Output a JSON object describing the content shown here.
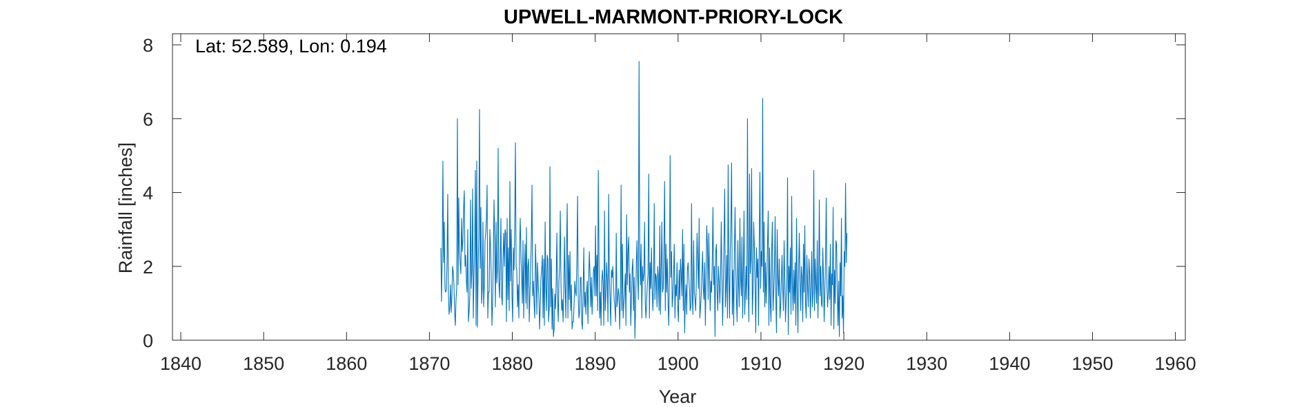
{
  "chart_data": {
    "type": "line",
    "title": "UPWELL-MARMONT-PRIORY-LOCK",
    "xlabel": "Year",
    "ylabel": "Rainfall [inches]",
    "annotation": "Lat: 52.589, Lon: 0.194",
    "xlim": [
      1839,
      1961.2
    ],
    "ylim": [
      0,
      8.3
    ],
    "xticks": [
      1840,
      1850,
      1860,
      1870,
      1880,
      1890,
      1900,
      1910,
      1920,
      1930,
      1940,
      1950,
      1960
    ],
    "xtick_labels": [
      "1840",
      "1850",
      "1860",
      "1870",
      "1880",
      "1890",
      "1900",
      "1910",
      "1920",
      "1930",
      "1940",
      "1950",
      "1960"
    ],
    "yticks": [
      0,
      2,
      4,
      6,
      8
    ],
    "ytick_labels": [
      "0",
      "2",
      "4",
      "6",
      "8"
    ],
    "grid": false,
    "legend": "none",
    "line_color": "#0072BD",
    "series": [
      {
        "x_start": 1871.375,
        "x_step": 0.08333333,
        "values": [
          2.5,
          1.05,
          2.3,
          4.85,
          2.1,
          3.2,
          1.4,
          1.3,
          1.35,
          2.1,
          3.95,
          1.2,
          0.7,
          0.9,
          1.5,
          0.75,
          1.15,
          2.0,
          1.85,
          1.5,
          0.75,
          0.4,
          1.1,
          1.4,
          6.0,
          1.5,
          3.85,
          2.4,
          2.1,
          1.8,
          3.3,
          2.4,
          2.7,
          3.6,
          4.05,
          2.0,
          2.3,
          1.6,
          1.3,
          3.0,
          0.5,
          0.8,
          1.2,
          3.8,
          1.4,
          1.9,
          4.1,
          0.6,
          1.7,
          2.5,
          4.6,
          0.4,
          4.85,
          0.35,
          1.8,
          2.95,
          6.25,
          1.95,
          3.6,
          1.0,
          1.4,
          3.2,
          0.9,
          1.5,
          2.7,
          2.9,
          3.3,
          4.2,
          0.6,
          1.3,
          1.3,
          3.0,
          2.5,
          1.75,
          0.4,
          1.0,
          2.2,
          3.8,
          2.7,
          0.9,
          3.2,
          1.55,
          1.9,
          5.2,
          1.6,
          1.15,
          2.1,
          3.3,
          1.2,
          0.95,
          2.2,
          2.9,
          2.0,
          3.0,
          2.9,
          0.5,
          3.3,
          1.1,
          2.5,
          0.8,
          4.3,
          1.6,
          3.0,
          1.2,
          0.5,
          2.5,
          1.9,
          3.1,
          5.35,
          2.0,
          1.9,
          0.9,
          1.5,
          0.6,
          2.5,
          3.3,
          2.3,
          1.7,
          1.0,
          2.7,
          0.6,
          1.9,
          2.6,
          1.0,
          3.05,
          0.85,
          2.0,
          2.2,
          0.5,
          1.2,
          1.95,
          2.75,
          4.2,
          1.2,
          1.6,
          1.0,
          0.6,
          2.6,
          1.9,
          0.7,
          2.1,
          1.55,
          1.15,
          0.3,
          0.95,
          1.7,
          1.9,
          2.3,
          0.6,
          2.2,
          0.4,
          3.2,
          1.5,
          0.8,
          2.3,
          2.2,
          0.5,
          0.9,
          4.7,
          0.9,
          2.2,
          0.3,
          1.4,
          0.1,
          0.3,
          1.25,
          0.85,
          1.6,
          2.9,
          1.1,
          0.5,
          1.6,
          2.0,
          3.5,
          1.5,
          0.8,
          1.1,
          0.5,
          1.3,
          2.8,
          1.5,
          0.6,
          2.5,
          3.7,
          0.6,
          2.3,
          1.1,
          2.4,
          0.8,
          1.5,
          0.3,
          0.5,
          0.5,
          1.0,
          1.6,
          1.3,
          1.2,
          2.2,
          3.9,
          1.1,
          0.6,
          0.8,
          1.7,
          1.7,
          0.5,
          0.3,
          1.3,
          2.5,
          0.9,
          1.3,
          0.7,
          1.3,
          1.6,
          0.45,
          1.6,
          2.4,
          1.8,
          0.9,
          1.7,
          0.7,
          1.3,
          1.9,
          2.0,
          1.2,
          3.1,
          1.2,
          2.3,
          0.8,
          4.6,
          2.3,
          0.6,
          1.3,
          0.4,
          1.6,
          1.9,
          1.5,
          0.4,
          3.5,
          0.8,
          1.2,
          2.1,
          1.6,
          0.5,
          3.95,
          1.7,
          1.1,
          0.4,
          1.9,
          1.7,
          2.0,
          1.5,
          1.1,
          0.9,
          0.5,
          2.9,
          0.9,
          1.1,
          1.4,
          1.2,
          0.3,
          1.2,
          4.2,
          0.8,
          2.6,
          0.6,
          1.0,
          1.3,
          1.8,
          0.4,
          3.4,
          1.5,
          2.4,
          2.8,
          1.3,
          1.8,
          0.4,
          1.1,
          1.9,
          2.2,
          0.8,
          1.7,
          0.05,
          0.9,
          2.0,
          2.7,
          1.7,
          1.1,
          7.55,
          2.4,
          1.5,
          2.6,
          0.6,
          2.0,
          1.6,
          1.8,
          3.2,
          1.0,
          0.6,
          1.1,
          1.5,
          1.8,
          4.5,
          0.6,
          2.1,
          1.4,
          2.5,
          1.4,
          0.8,
          1.5,
          3.7,
          1.1,
          1.8,
          1.7,
          0.9,
          2.0,
          1.7,
          0.8,
          3.1,
          0.7,
          1.9,
          3.2,
          1.3,
          1.4,
          2.5,
          4.3,
          0.8,
          2.6,
          1.3,
          2.2,
          1.0,
          0.4,
          1.8,
          5.0,
          1.7,
          2.4,
          0.9,
          1.2,
          1.8,
          2.6,
          0.6,
          1.5,
          1.2,
          2.1,
          0.9,
          0.5,
          1.9,
          1.1,
          2.2,
          1.8,
          1.2,
          3.0,
          0.8,
          2.6,
          0.2,
          1.1,
          1.5,
          0.7,
          1.9,
          2.1,
          1.7,
          1.4,
          0.8,
          0.9,
          3.7,
          1.2,
          0.7,
          2.7,
          1.3,
          1.1,
          0.8,
          1.7,
          2.9,
          2.1,
          1.4,
          3.3,
          0.6,
          0.9,
          1.2,
          1.8,
          2.4,
          1.4,
          1.1,
          2.1,
          0.4,
          1.7,
          3.1,
          2.6,
          1.1,
          2.9,
          1.8,
          0.8,
          1.6,
          1.3,
          2.1,
          3.6,
          1.5,
          2.0,
          0.1,
          2.4,
          2.6,
          1.3,
          0.8,
          2.0,
          1.6,
          1.0,
          1.7,
          3.2,
          1.8,
          0.4,
          1.5,
          2.7,
          4.1,
          0.9,
          1.4,
          2.3,
          0.6,
          4.75,
          1.8,
          0.6,
          2.4,
          3.2,
          4.8,
          0.7,
          1.9,
          0.4,
          2.3,
          3.6,
          2.0,
          1.1,
          0.5,
          2.7,
          1.6,
          0.9,
          3.3,
          1.7,
          1.2,
          2.8,
          0.6,
          1.9,
          3.5,
          0.7,
          1.3,
          2.0,
          1.1,
          6.0,
          1.6,
          0.5,
          4.5,
          1.8,
          2.2,
          4.65,
          0.7,
          1.3,
          3.2,
          2.5,
          1.5,
          0.2,
          2.5,
          1.7,
          2.2,
          0.4,
          2.6,
          4.55,
          1.4,
          2.4,
          2.0,
          6.55,
          1.3,
          3.2,
          0.9,
          2.1,
          1.0,
          1.7,
          2.6,
          3.5,
          0.4,
          2.5,
          1.0,
          0.5,
          2.4,
          3.2,
          0.8,
          1.3,
          1.9,
          3.35,
          1.2,
          0.2,
          3.0,
          1.7,
          1.2,
          2.2,
          0.6,
          0.9,
          1.6,
          2.3,
          1.4,
          0.8,
          2.7,
          1.7,
          0.5,
          1.1,
          1.6,
          4.4,
          0.15,
          2.0,
          1.3,
          2.5,
          0.7,
          3.9,
          1.5,
          0.8,
          1.9,
          1.0,
          2.1,
          0.4,
          3.3,
          1.4,
          0.2,
          1.9,
          2.9,
          1.6,
          0.8,
          2.0,
          1.7,
          0.5,
          2.6,
          1.3,
          3.1,
          1.0,
          0.6,
          2.3,
          1.5,
          0.9,
          2.2,
          1.8,
          0.6,
          1.4,
          2.4,
          0.9,
          1.3,
          4.6,
          0.8,
          2.2,
          1.5,
          1.0,
          2.7,
          0.6,
          1.6,
          3.8,
          1.2,
          2.0,
          1.0,
          0.9,
          2.5,
          1.7,
          0.5,
          1.3,
          2.2,
          3.85,
          1.5,
          0.9,
          1.3,
          2.0,
          1.1,
          2.6,
          0.4,
          1.8,
          1.5,
          3.6,
          0.3,
          1.9,
          1.0,
          2.7,
          2.6,
          1.3,
          0.4,
          1.6,
          0.1,
          2.1,
          1.2,
          3.3,
          0.6,
          1.2,
          0.2,
          2.4,
          2.0,
          4.25,
          2.1,
          2.9
        ]
      }
    ]
  }
}
